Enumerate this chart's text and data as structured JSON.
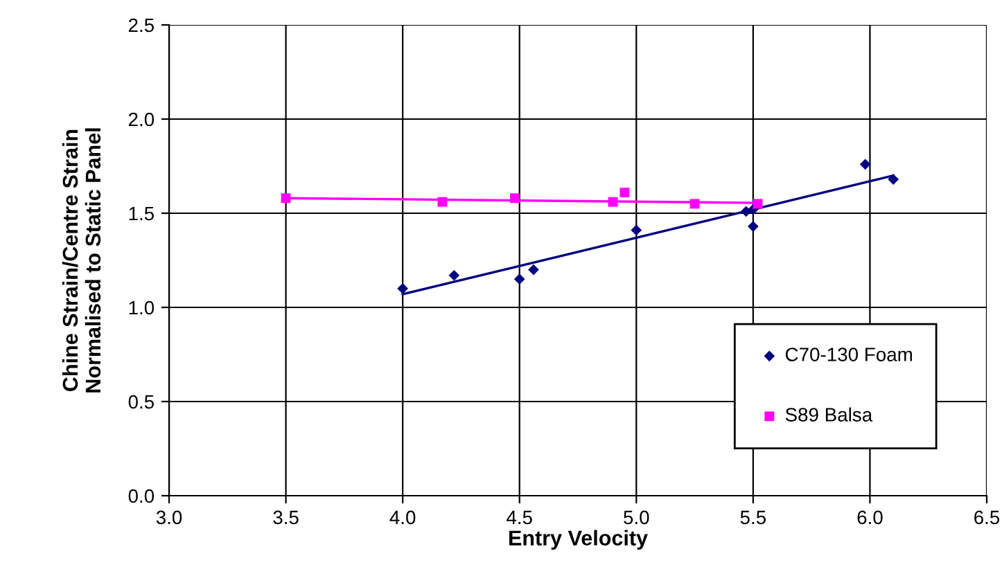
{
  "chart_data": {
    "type": "scatter",
    "xlabel": "Entry Velocity",
    "ylabel": "Chine Strain/Centre Strain\nNormalised to Static Panel",
    "xlim": [
      3.0,
      6.5
    ],
    "xticks": [
      {
        "value": 3.0,
        "label": "3.0"
      },
      {
        "value": 3.5,
        "label": "3.5"
      },
      {
        "value": 4.0,
        "label": "4.0"
      },
      {
        "value": 4.5,
        "label": "4.5"
      },
      {
        "value": 5.0,
        "label": "5.0"
      },
      {
        "value": 5.5,
        "label": "5.5"
      },
      {
        "value": 6.0,
        "label": "6.0"
      },
      {
        "value": 6.5,
        "label": "6.5"
      }
    ],
    "ylim": [
      0.0,
      2.5
    ],
    "yticks": [
      {
        "value": 0.0,
        "label": "0.0"
      },
      {
        "value": 0.5,
        "label": "0.5"
      },
      {
        "value": 1.0,
        "label": "1.0"
      },
      {
        "value": 1.5,
        "label": "1.5"
      },
      {
        "value": 2.0,
        "label": "2.0"
      },
      {
        "value": 2.5,
        "label": "2.5"
      }
    ],
    "grid": true,
    "legend": "bottom right",
    "series": [
      {
        "name": "C70-130 Foam",
        "marker": "diamond",
        "color": "#000080",
        "x": [
          4.0,
          4.22,
          4.5,
          4.56,
          5.0,
          5.47,
          5.5,
          5.5,
          5.98,
          6.1
        ],
        "values": [
          1.1,
          1.17,
          1.15,
          1.2,
          1.41,
          1.51,
          1.52,
          1.43,
          1.76,
          1.68
        ]
      },
      {
        "name": "S89 Balsa",
        "marker": "square",
        "color": "#ff00ff",
        "x": [
          3.5,
          4.17,
          4.48,
          4.9,
          4.95,
          5.25,
          5.52
        ],
        "values": [
          1.58,
          1.56,
          1.58,
          1.56,
          1.61,
          1.55,
          1.55
        ]
      },
      {
        "type": "line",
        "marker": "none",
        "color": "#000080",
        "x": [
          4.0,
          6.1
        ],
        "values": [
          1.07,
          1.7
        ]
      },
      {
        "type": "line",
        "marker": "none",
        "color": "#ff00ff",
        "x": [
          3.5,
          5.52
        ],
        "values": [
          1.58,
          1.555
        ]
      }
    ]
  }
}
